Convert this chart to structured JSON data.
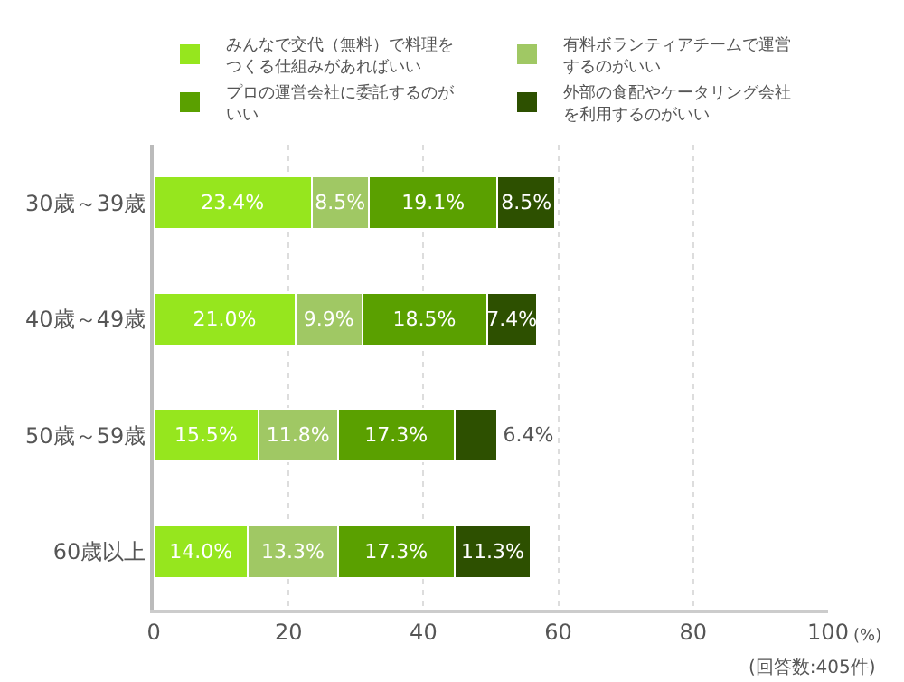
{
  "chart_data": {
    "type": "bar",
    "orientation": "horizontal",
    "stacked": true,
    "categories": [
      "30歳～39歳",
      "40歳～49歳",
      "50歳～59歳",
      "60歳以上"
    ],
    "series": [
      {
        "name": "みんなで交代（無料）で料理をつくる仕組みがあればいい",
        "color": "#96e61e",
        "values": [
          23.4,
          21.0,
          15.5,
          14.0
        ]
      },
      {
        "name": "有料ボランティアチームで運営するのがいい",
        "color": "#a0c864",
        "values": [
          8.5,
          9.9,
          11.8,
          13.3
        ]
      },
      {
        "name": "プロの運営会社に委託するのがいい",
        "color": "#5aa000",
        "values": [
          19.1,
          18.5,
          17.3,
          17.3
        ]
      },
      {
        "name": "外部の食配やケータリング会社を利用するのがいい",
        "color": "#2d5000",
        "values": [
          8.5,
          7.4,
          6.4,
          11.3
        ]
      }
    ],
    "value_labels": [
      [
        "23.4%",
        "21.0%",
        "15.5%",
        "14.0%"
      ],
      [
        "8.5%",
        "9.9%",
        "11.8%",
        "13.3%"
      ],
      [
        "19.1%",
        "18.5%",
        "17.3%",
        "17.3%"
      ],
      [
        "8.5%",
        "7.4%",
        "6.4%",
        "11.3%"
      ]
    ],
    "xlim": [
      0,
      100
    ],
    "xticks": [
      0,
      20,
      40,
      60,
      80,
      100
    ],
    "xlabel": "(%)",
    "annotations": [
      "(回答数:405件)"
    ],
    "grid": "x",
    "legend": "top"
  }
}
